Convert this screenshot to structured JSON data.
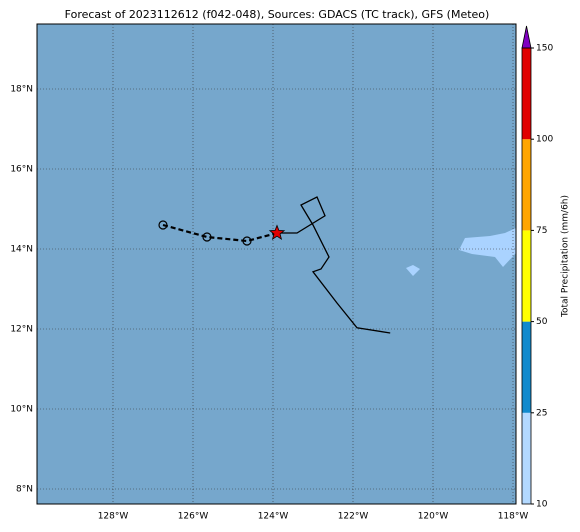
{
  "chart_data": {
    "type": "map-track",
    "title": "Forecast of 2023112612 (f042-048), Sources: GDACS (TC track), GFS (Meteo)",
    "xlim": [
      -129.9,
      -117.925
    ],
    "ylim": [
      7.625,
      19.625
    ],
    "xticks": [
      {
        "value": -128,
        "label": "128°W"
      },
      {
        "value": -126,
        "label": "126°W"
      },
      {
        "value": -124,
        "label": "124°W"
      },
      {
        "value": -122,
        "label": "122°W"
      },
      {
        "value": -120,
        "label": "120°W"
      },
      {
        "value": -118,
        "label": "118°W"
      }
    ],
    "yticks": [
      {
        "value": 8,
        "label": "8°N"
      },
      {
        "value": 10,
        "label": "10°N"
      },
      {
        "value": 12,
        "label": "12°N"
      },
      {
        "value": 14,
        "label": "14°N"
      },
      {
        "value": 16,
        "label": "16°N"
      },
      {
        "value": 18,
        "label": "18°N"
      }
    ],
    "grid": true,
    "ocean_color": "#76a7cc",
    "track": {
      "x": [
        -126.75,
        -125.65,
        -124.65,
        -123.9
      ],
      "y": [
        14.6,
        14.3,
        14.2,
        14.4
      ]
    },
    "current": {
      "x": -123.9,
      "y": 14.4,
      "color": "#e00000"
    },
    "outline": {
      "x": [
        -123.9,
        -123.4,
        -122.7,
        -122.9,
        -123.3,
        -123.0,
        -122.6,
        -122.8,
        -123.0,
        -122.4,
        -121.9,
        -121.07
      ],
      "y": [
        14.4,
        14.4,
        14.83,
        15.3,
        15.1,
        14.6,
        13.8,
        13.5,
        13.43,
        12.65,
        12.03,
        11.9
      ]
    },
    "colorbar": {
      "label": "Total Precipitation (mm/6h)",
      "ticks": [
        10,
        25,
        50,
        75,
        100,
        150
      ],
      "colors": [
        "#b3d9ff",
        "#118acd",
        "#ffff00",
        "#ffa500",
        "#e00000"
      ],
      "extend_color": "#8000c0"
    }
  }
}
